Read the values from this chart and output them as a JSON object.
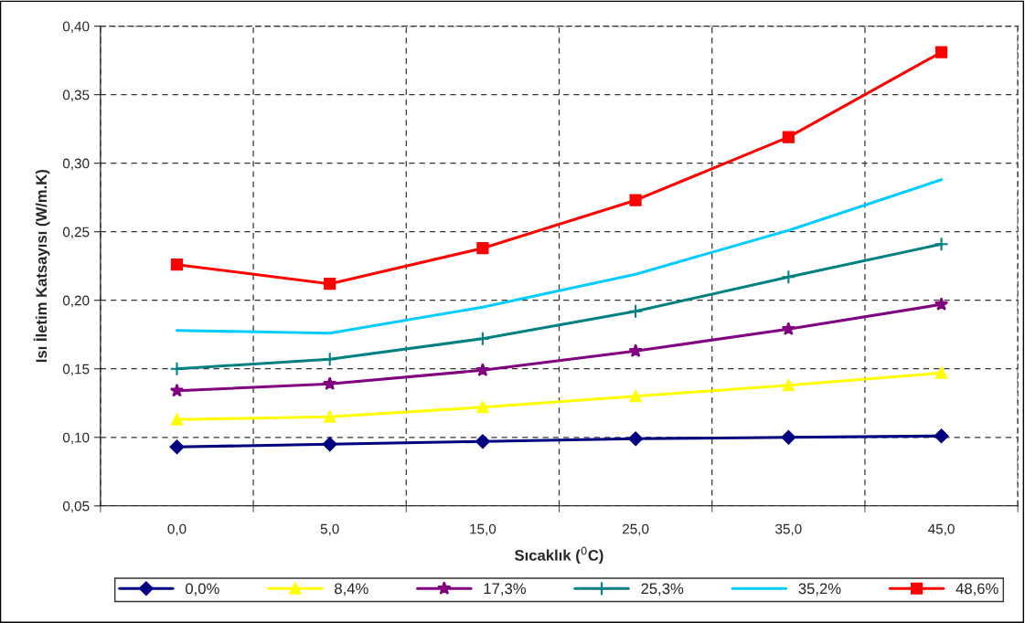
{
  "chart_data": {
    "type": "line",
    "xlabel": "Sıcaklık ($^{0}$C)",
    "ylabel": "Isı İletim Katsayısı (W/m.K)",
    "categories": [
      "0,0",
      "5,0",
      "15,0",
      "25,0",
      "35,0",
      "45,0"
    ],
    "series": [
      {
        "name": "0,0%",
        "color": "#000080",
        "marker": "diamond",
        "values": [
          0.093,
          0.095,
          0.097,
          0.099,
          0.1,
          0.101
        ]
      },
      {
        "name": "8,4%",
        "color": "#ffff00",
        "marker": "triangle",
        "values": [
          0.113,
          0.115,
          0.122,
          0.13,
          0.138,
          0.147
        ]
      },
      {
        "name": "17,3%",
        "color": "#800080",
        "marker": "star",
        "values": [
          0.134,
          0.139,
          0.149,
          0.163,
          0.179,
          0.197
        ]
      },
      {
        "name": "25,3%",
        "color": "#008080",
        "marker": "cross",
        "values": [
          0.15,
          0.157,
          0.172,
          0.192,
          0.217,
          0.241
        ]
      },
      {
        "name": "35,2%",
        "color": "#00ccff",
        "marker": "none",
        "values": [
          0.178,
          0.176,
          0.195,
          0.219,
          0.251,
          0.288
        ]
      },
      {
        "name": "48,6%",
        "color": "#ff0000",
        "marker": "square",
        "values": [
          0.226,
          0.212,
          0.238,
          0.273,
          0.319,
          0.381
        ]
      }
    ],
    "ylim": [
      0.05,
      0.4
    ],
    "yticks": [
      {
        "value": 0.05,
        "label": "0,05"
      },
      {
        "value": 0.1,
        "label": "0,10"
      },
      {
        "value": 0.15,
        "label": "0,15"
      },
      {
        "value": 0.2,
        "label": "0,20"
      },
      {
        "value": 0.25,
        "label": "0,25"
      },
      {
        "value": 0.3,
        "label": "0,30"
      },
      {
        "value": 0.35,
        "label": "0,35"
      },
      {
        "value": 0.4,
        "label": "0,40"
      }
    ],
    "grid": true,
    "legend": "bottom",
    "line_style": "solid"
  }
}
